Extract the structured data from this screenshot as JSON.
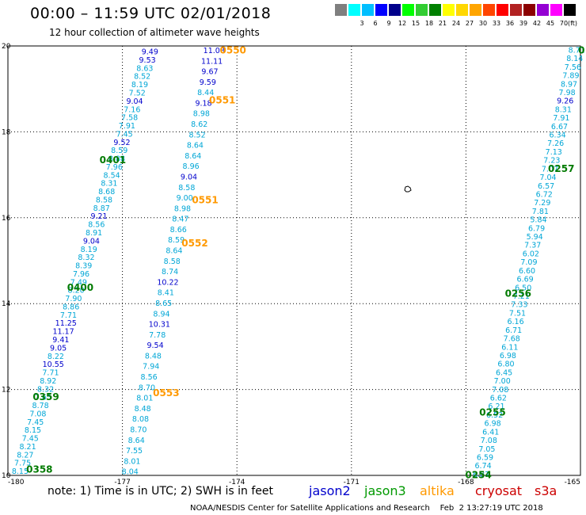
{
  "header": {
    "title": "00:00 – 11:59 UTC 02/01/2018",
    "subtitle": "12 hour collection of altimeter wave heights"
  },
  "legend": {
    "unit": "(ft)",
    "swatches": [
      {
        "color": "#7f7f7f",
        "label": ""
      },
      {
        "color": "#00ffff",
        "label": "3"
      },
      {
        "color": "#00bfff",
        "label": "6"
      },
      {
        "color": "#0000ff",
        "label": "9"
      },
      {
        "color": "#00008b",
        "label": "12"
      },
      {
        "color": "#00ff00",
        "label": "15"
      },
      {
        "color": "#32cd32",
        "label": "18"
      },
      {
        "color": "#008000",
        "label": "21"
      },
      {
        "color": "#ffff00",
        "label": "24"
      },
      {
        "color": "#ffd700",
        "label": "27"
      },
      {
        "color": "#ffa500",
        "label": "30"
      },
      {
        "color": "#ff4500",
        "label": "33"
      },
      {
        "color": "#ff0000",
        "label": "36"
      },
      {
        "color": "#b22222",
        "label": "39"
      },
      {
        "color": "#8b0000",
        "label": "42"
      },
      {
        "color": "#9400d3",
        "label": "45"
      },
      {
        "color": "#ff00ff",
        "label": "70"
      },
      {
        "color": "#000000",
        "label": ""
      }
    ]
  },
  "footer": {
    "note": "note: 1) Time is in UTC; 2) SWH is in feet",
    "sources": [
      {
        "label": "jason2",
        "color": "#0000cc"
      },
      {
        "label": "jason3",
        "color": "#009900"
      },
      {
        "label": "altika",
        "color": "#ff9900"
      },
      {
        "label": "cryosat",
        "color": "#cc0000"
      },
      {
        "label": "s3a",
        "color": "#cc0000"
      }
    ],
    "credit": "NOAA/NESDIS Center for Satellite Applications and Research    Feb  2 13:27:19 UTC 2018"
  },
  "chart_data": {
    "type": "scatter",
    "title": "00:00 – 11:59 UTC 02/01/2018",
    "xlabel": "",
    "ylabel": "",
    "xlim": [
      -180,
      -165
    ],
    "ylim": [
      10,
      20
    ],
    "grid": true,
    "x_ticks": [
      "-180",
      "-177",
      "-174",
      "-171",
      "-168",
      "-165"
    ],
    "y_ticks": [
      "10",
      "12",
      "14",
      "16",
      "18",
      "20"
    ],
    "colors": {
      "light": "#00a6d6",
      "dark": "#0000cc",
      "time_green": "#007a00",
      "time_orange": "#ff9900"
    },
    "tracks": [
      {
        "name": "track-a",
        "start": [
          -179.68,
          10.09
        ],
        "end": [
          -176.28,
          19.86
        ],
        "values": [
          "8.15",
          "7.75",
          "8.27",
          "8.21",
          "7.45",
          "8.15",
          "7.45",
          "7.08",
          "8.78",
          "7.65",
          "8.32",
          "8.92",
          "7.71",
          "10.55",
          "8.22",
          "9.05",
          "9.41",
          "11.17",
          "11.25",
          "7.71",
          "8.86",
          "7.90",
          "8.20",
          "7.49",
          "7.96",
          "8.39",
          "8.32",
          "8.19",
          "9.04",
          "8.91",
          "8.56",
          "9.21",
          "8.87",
          "8.58",
          "8.68",
          "8.31",
          "8.54",
          "7.96",
          "8.88",
          "8.59",
          "9.52",
          "7.45",
          "7.91",
          "7.58",
          "7.16",
          "9.04",
          "7.52",
          "8.19",
          "8.52",
          "8.63",
          "9.53",
          "9.49"
        ],
        "dark": [
          "10.55",
          "9.05",
          "9.41",
          "11.17",
          "11.25",
          "9.04",
          "9.21",
          "9.52",
          "9.04",
          "9.53",
          "9.49"
        ]
      },
      {
        "name": "track-b",
        "start": [
          -176.8,
          10.08
        ],
        "end": [
          -174.6,
          19.89
        ],
        "values": [
          "8.04",
          "8.01",
          "7.55",
          "8.64",
          "8.70",
          "8.08",
          "8.48",
          "8.01",
          "8.70",
          "8.56",
          "7.94",
          "8.48",
          "9.54",
          "7.78",
          "10.31",
          "8.94",
          "8.65",
          "8.41",
          "10.22",
          "8.74",
          "8.58",
          "8.64",
          "8.59",
          "8.66",
          "8.47",
          "8.98",
          "9.00",
          "8.58",
          "9.04",
          "8.96",
          "8.64",
          "8.64",
          "8.52",
          "8.62",
          "8.98",
          "9.18",
          "8.44",
          "9.59",
          "9.67",
          "11.11",
          "11.08"
        ],
        "dark": [
          "9.54",
          "10.31",
          "10.22",
          "9.04",
          "9.18",
          "9.59",
          "9.67",
          "11.11",
          "11.08"
        ]
      },
      {
        "name": "track-c",
        "start": [
          -167.6,
          10.02
        ],
        "end": [
          -165.1,
          19.9
        ],
        "values": [
          "6.87",
          "6.74",
          "6.59",
          "7.05",
          "7.08",
          "6.41",
          "6.98",
          "6.52",
          "6.21",
          "6.62",
          "7.08",
          "7.00",
          "6.45",
          "6.80",
          "6.98",
          "6.11",
          "7.68",
          "6.71",
          "6.16",
          "7.51",
          "7.33",
          "7.21",
          "6.50",
          "6.69",
          "6.60",
          "7.09",
          "6.02",
          "7.37",
          "5.94",
          "6.79",
          "5.84",
          "7.81",
          "7.29",
          "6.72",
          "6.57",
          "7.04",
          "7.07",
          "7.23",
          "7.13",
          "7.26",
          "6.34",
          "6.67",
          "7.91",
          "8.31",
          "9.26",
          "7.98",
          "8.97",
          "7.89",
          "7.56",
          "8.14",
          "8.71"
        ],
        "dark": [
          "9.26"
        ]
      }
    ],
    "time_labels": [
      {
        "text": "0550",
        "lon": -174.45,
        "lat": 19.9,
        "color": "orange"
      },
      {
        "text": "0551",
        "lon": -174.73,
        "lat": 18.74,
        "color": "orange"
      },
      {
        "text": "0551",
        "lon": -175.18,
        "lat": 16.41,
        "color": "orange"
      },
      {
        "text": "0552",
        "lon": -175.45,
        "lat": 15.41,
        "color": "orange"
      },
      {
        "text": "0553",
        "lon": -176.2,
        "lat": 11.92,
        "color": "orange"
      },
      {
        "text": "0401",
        "lon": -177.6,
        "lat": 17.34,
        "color": "green"
      },
      {
        "text": "0400",
        "lon": -178.45,
        "lat": 14.37,
        "color": "green"
      },
      {
        "text": "0359",
        "lon": -179.35,
        "lat": 11.83,
        "color": "green"
      },
      {
        "text": "0358",
        "lon": -179.52,
        "lat": 10.14,
        "color": "green"
      },
      {
        "text": "0257",
        "lon": -165.85,
        "lat": 17.14,
        "color": "green"
      },
      {
        "text": "0256",
        "lon": -166.98,
        "lat": 14.23,
        "color": "green"
      },
      {
        "text": "0255",
        "lon": -167.65,
        "lat": 11.47,
        "color": "green"
      },
      {
        "text": "0254",
        "lon": -168.02,
        "lat": 10.01,
        "color": "green"
      },
      {
        "text": "0",
        "lon": -165.06,
        "lat": 19.9,
        "color": "green"
      }
    ]
  }
}
